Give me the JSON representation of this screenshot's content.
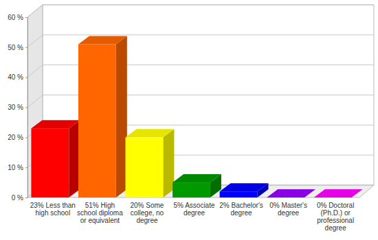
{
  "chart_data": {
    "type": "bar",
    "categories": [
      "23% Less than high school",
      "51% High school diploma or equivalent",
      "20% Some college, no degree",
      "5% Associate degree",
      "2% Bachelor's degree",
      "0% Master's degree",
      "0% Doctoral (Ph.D.) or professional degree"
    ],
    "values": [
      23,
      51,
      20,
      5,
      2,
      0,
      0
    ],
    "colors": [
      "#ff0000",
      "#ff6600",
      "#ffff00",
      "#009900",
      "#0000ff",
      "#9900ff",
      "#ff00ff"
    ],
    "ylim": [
      0,
      60
    ],
    "yticks": [
      {
        "value": 0,
        "label": "0 %"
      },
      {
        "value": 10,
        "label": "10 %"
      },
      {
        "value": 20,
        "label": "20 %"
      },
      {
        "value": 30,
        "label": "30 %"
      },
      {
        "value": 40,
        "label": "40 %"
      },
      {
        "value": 50,
        "label": "50 %"
      },
      {
        "value": 60,
        "label": "60 %"
      }
    ],
    "grid": true
  }
}
